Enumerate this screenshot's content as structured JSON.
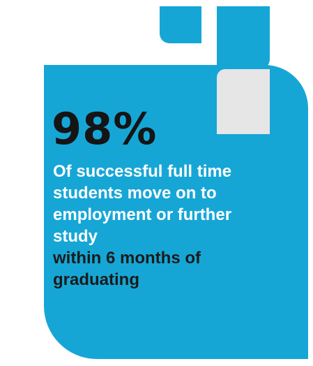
{
  "stat": {
    "value": "98%"
  },
  "description": {
    "lines": [
      "Of successful full time",
      "students move on to",
      "employment or further",
      "study",
      "within 6 months of",
      "graduating"
    ]
  },
  "colors": {
    "accent": "#16a6d6",
    "grey_block": "#e6e6e6",
    "stat_text": "#151515",
    "body_text_light": "#ffffff",
    "body_text_dark": "#1b1b1b"
  }
}
